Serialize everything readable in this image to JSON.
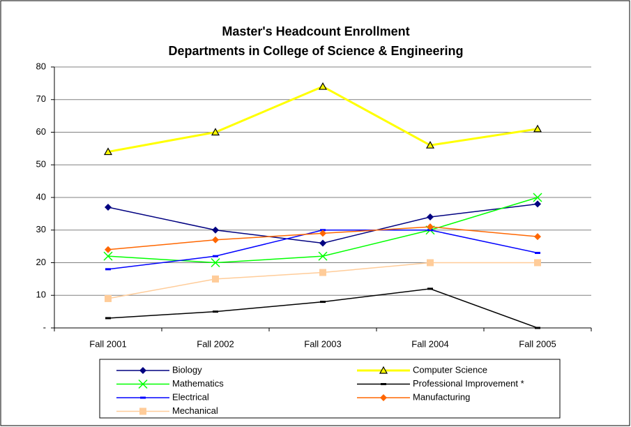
{
  "chart_data": {
    "type": "line",
    "title": [
      "Master's Headcount Enrollment",
      "Departments in College of Science & Engineering"
    ],
    "categories": [
      "Fall 2001",
      "Fall 2002",
      "Fall 2003",
      "Fall 2004",
      "Fall 2005"
    ],
    "ylim": [
      0,
      80
    ],
    "yticks": [
      {
        "value": 0,
        "label": "-"
      },
      10,
      20,
      30,
      40,
      50,
      60,
      70,
      80
    ],
    "grid": true,
    "legend": "bottom",
    "series": [
      {
        "name": "Biology",
        "color": "#000080",
        "marker": "diamond",
        "values": [
          37,
          30,
          26,
          34,
          38
        ]
      },
      {
        "name": "Computer Science",
        "color": "#FFFF00",
        "marker": "triangle",
        "values": [
          54,
          60,
          74,
          56,
          61
        ]
      },
      {
        "name": "Mathematics",
        "color": "#00FF00",
        "marker": "x",
        "values": [
          22,
          20,
          22,
          30,
          40
        ]
      },
      {
        "name": "Professional Improvement *",
        "color": "#000000",
        "marker": "dash",
        "values": [
          3,
          5,
          8,
          12,
          0
        ]
      },
      {
        "name": "Electrical",
        "color": "#0000FF",
        "marker": "dash",
        "values": [
          18,
          22,
          30,
          30,
          23
        ]
      },
      {
        "name": "Manufacturing",
        "color": "#FF6600",
        "marker": "diamond",
        "values": [
          24,
          27,
          29,
          31,
          28
        ]
      },
      {
        "name": "Mechanical",
        "color": "#FFCC99",
        "marker": "square",
        "values": [
          9,
          15,
          17,
          20,
          20
        ]
      }
    ]
  }
}
